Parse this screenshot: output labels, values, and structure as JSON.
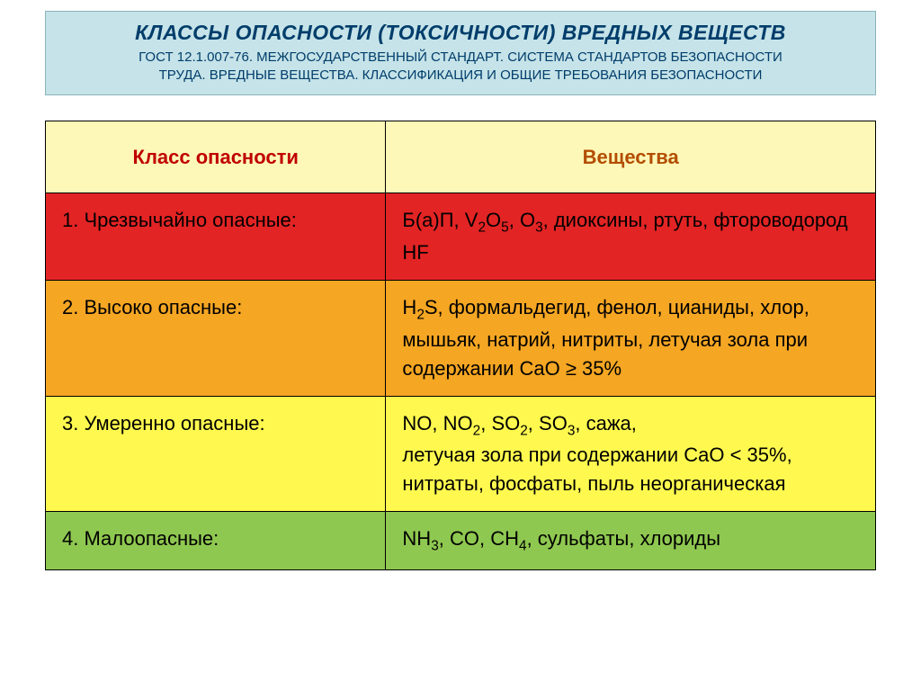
{
  "header": {
    "title_main": "КЛАССЫ ОПАСНОСТИ (ТОКСИЧНОСТИ) ВРЕДНЫХ ВЕЩЕСТВ",
    "title_sub_line1": "ГОСТ 12.1.007-76. МЕЖГОСУДАРСТВЕННЫЙ СТАНДАРТ. СИСТЕМА СТАНДАРТОВ БЕЗОПАСНОСТИ",
    "title_sub_line2": "ТРУДА. ВРЕДНЫЕ ВЕЩЕСТВА. КЛАССИФИКАЦИЯ И ОБЩИЕ ТРЕБОВАНИЯ БЕЗОПАСНОСТИ",
    "bg_color": "#c5e3e8",
    "text_color": "#003d6b"
  },
  "table": {
    "header": {
      "col1": "Класс опасности",
      "col2": "Вещества",
      "bg_color": "#fdf8b8",
      "col1_text_color": "#c00000",
      "col2_text_color": "#b34d00"
    },
    "rows": [
      {
        "class_label": "1. Чрезвычайно опасные:",
        "substances_html": "Б(а)П, V<sub>2</sub>O<sub>5</sub>, O<sub>3</sub>, диоксины, ртуть, фтороводород HF",
        "bg_color": "#e32424",
        "text_color": "#000000"
      },
      {
        "class_label": "2. Высоко опасные:",
        "substances_html": "H<sub>2</sub>S, формальдегид, фенол, цианиды, хлор, мышьяк, натрий, нитриты, летучая зола при содержании  CaO ≥ 35%",
        "bg_color": "#f5a623",
        "text_color": "#000000"
      },
      {
        "class_label": "3. Умеренно опасные:",
        "substances_html": "NO, NO<sub>2</sub>, SO<sub>2</sub>, SO<sub>3</sub>, сажа,<br>летучая зола при содержании CaO &lt; 35%, нитраты, фосфаты, пыль неорганическая",
        "bg_color": "#fff94f",
        "text_color": "#000000"
      },
      {
        "class_label": "4. Малоопасные:",
        "substances_html": "NH<sub>3</sub>, CO, CH<sub>4</sub>, сульфаты, хлориды",
        "bg_color": "#8fc850",
        "text_color": "#000000"
      }
    ]
  }
}
